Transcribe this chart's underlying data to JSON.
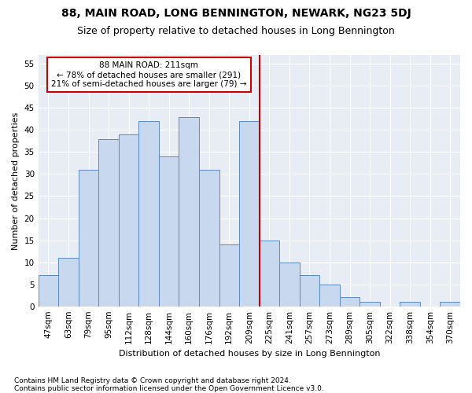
{
  "title": "88, MAIN ROAD, LONG BENNINGTON, NEWARK, NG23 5DJ",
  "subtitle": "Size of property relative to detached houses in Long Bennington",
  "xlabel": "Distribution of detached houses by size in Long Bennington",
  "ylabel": "Number of detached properties",
  "categories": [
    "47sqm",
    "63sqm",
    "79sqm",
    "95sqm",
    "112sqm",
    "128sqm",
    "144sqm",
    "160sqm",
    "176sqm",
    "192sqm",
    "209sqm",
    "225sqm",
    "241sqm",
    "257sqm",
    "273sqm",
    "289sqm",
    "305sqm",
    "322sqm",
    "338sqm",
    "354sqm",
    "370sqm"
  ],
  "values": [
    7,
    11,
    31,
    38,
    39,
    42,
    34,
    43,
    31,
    14,
    42,
    15,
    10,
    7,
    5,
    2,
    1,
    0,
    1,
    0,
    1
  ],
  "bar_color": "#c8d8ee",
  "bar_edge_color": "#5b8ac8",
  "vline_x_idx": 10,
  "vline_color": "#cc0000",
  "ylim": [
    0,
    57
  ],
  "yticks": [
    0,
    5,
    10,
    15,
    20,
    25,
    30,
    35,
    40,
    45,
    50,
    55
  ],
  "annotation_text": "88 MAIN ROAD: 211sqm\n← 78% of detached houses are smaller (291)\n21% of semi-detached houses are larger (79) →",
  "annotation_box_color": "#cc0000",
  "footnote1": "Contains HM Land Registry data © Crown copyright and database right 2024.",
  "footnote2": "Contains public sector information licensed under the Open Government Licence v3.0.",
  "fig_facecolor": "#ffffff",
  "plot_bg_color": "#e8ecf4",
  "grid_color": "#ffffff",
  "title_fontsize": 10,
  "subtitle_fontsize": 9,
  "ylabel_fontsize": 8,
  "xlabel_fontsize": 8,
  "tick_fontsize": 7.5,
  "footnote_fontsize": 6.5
}
